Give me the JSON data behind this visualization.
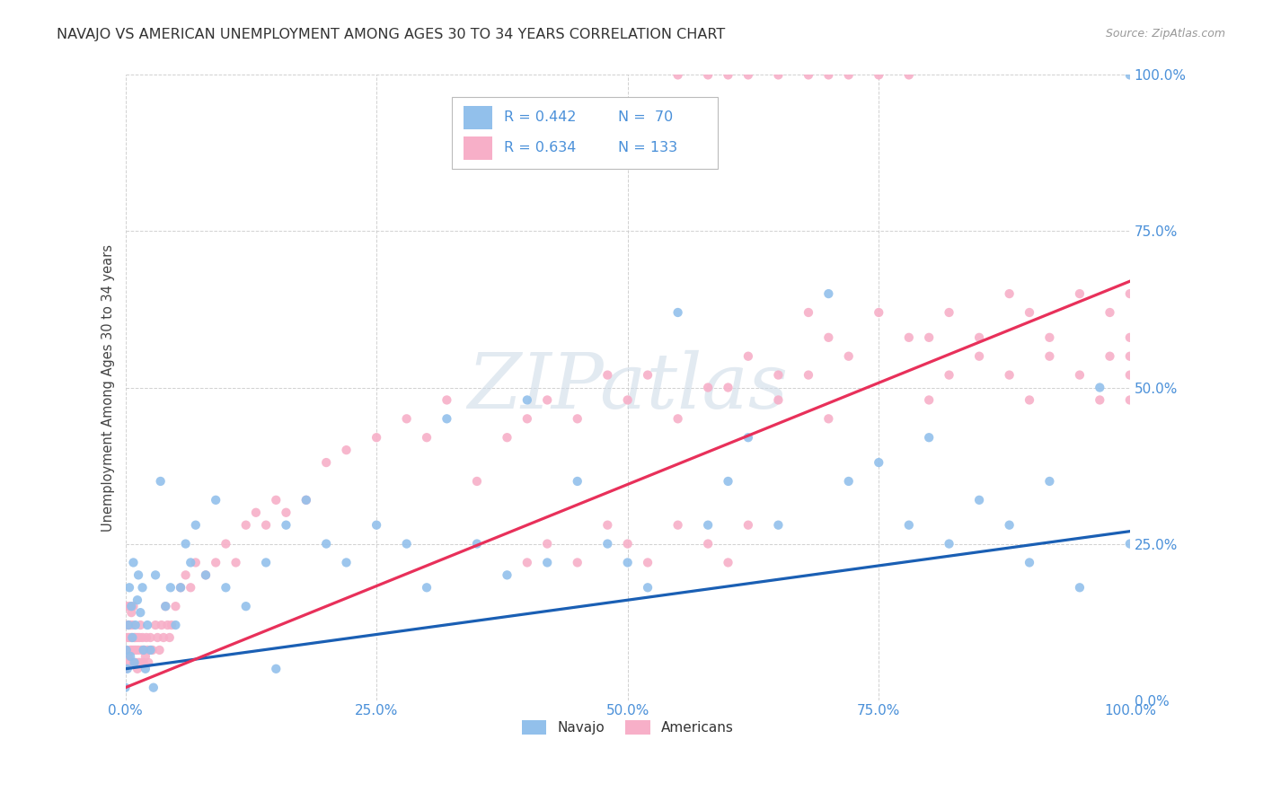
{
  "title": "NAVAJO VS AMERICAN UNEMPLOYMENT AMONG AGES 30 TO 34 YEARS CORRELATION CHART",
  "source": "Source: ZipAtlas.com",
  "ylabel": "Unemployment Among Ages 30 to 34 years",
  "navajo_R": 0.442,
  "navajo_N": 70,
  "american_R": 0.634,
  "american_N": 133,
  "navajo_color": "#92c0eb",
  "american_color": "#f7afc8",
  "navajo_line_color": "#1a5fb4",
  "american_line_color": "#e8305a",
  "watermark_text": "ZIPatlas",
  "background_color": "#ffffff",
  "grid_color": "#cccccc",
  "tick_color": "#4a90d9",
  "title_color": "#333333",
  "source_color": "#999999",
  "legend_text_color": "#4a90d9",
  "navajo_line_intercept": 0.05,
  "navajo_line_slope": 0.22,
  "american_line_intercept": 0.02,
  "american_line_slope": 0.65,
  "navajo_points_x": [
    0.0,
    0.001,
    0.002,
    0.003,
    0.004,
    0.005,
    0.006,
    0.007,
    0.008,
    0.009,
    0.01,
    0.012,
    0.013,
    0.015,
    0.017,
    0.018,
    0.02,
    0.022,
    0.025,
    0.028,
    0.03,
    0.035,
    0.04,
    0.045,
    0.05,
    0.055,
    0.06,
    0.065,
    0.07,
    0.08,
    0.09,
    0.1,
    0.12,
    0.14,
    0.15,
    0.16,
    0.18,
    0.2,
    0.22,
    0.25,
    0.28,
    0.3,
    0.32,
    0.35,
    0.38,
    0.4,
    0.42,
    0.45,
    0.48,
    0.5,
    0.52,
    0.55,
    0.58,
    0.6,
    0.62,
    0.65,
    0.7,
    0.72,
    0.75,
    0.78,
    0.8,
    0.82,
    0.85,
    0.88,
    0.9,
    0.92,
    0.95,
    0.97,
    1.0,
    1.0
  ],
  "navajo_points_y": [
    0.02,
    0.08,
    0.05,
    0.12,
    0.18,
    0.07,
    0.15,
    0.1,
    0.22,
    0.06,
    0.12,
    0.16,
    0.2,
    0.14,
    0.18,
    0.08,
    0.05,
    0.12,
    0.08,
    0.02,
    0.2,
    0.35,
    0.15,
    0.18,
    0.12,
    0.18,
    0.25,
    0.22,
    0.28,
    0.2,
    0.32,
    0.18,
    0.15,
    0.22,
    0.05,
    0.28,
    0.32,
    0.25,
    0.22,
    0.28,
    0.25,
    0.18,
    0.45,
    0.25,
    0.2,
    0.48,
    0.22,
    0.35,
    0.25,
    0.22,
    0.18,
    0.62,
    0.28,
    0.35,
    0.42,
    0.28,
    0.65,
    0.35,
    0.38,
    0.28,
    0.42,
    0.25,
    0.32,
    0.28,
    0.22,
    0.35,
    0.18,
    0.5,
    0.25,
    1.0
  ],
  "american_points_x": [
    0.0,
    0.0,
    0.001,
    0.001,
    0.002,
    0.002,
    0.003,
    0.003,
    0.004,
    0.004,
    0.005,
    0.005,
    0.006,
    0.006,
    0.007,
    0.007,
    0.008,
    0.008,
    0.009,
    0.009,
    0.01,
    0.01,
    0.011,
    0.012,
    0.012,
    0.013,
    0.013,
    0.014,
    0.015,
    0.015,
    0.016,
    0.017,
    0.018,
    0.019,
    0.02,
    0.021,
    0.022,
    0.023,
    0.025,
    0.027,
    0.03,
    0.032,
    0.034,
    0.036,
    0.038,
    0.04,
    0.042,
    0.044,
    0.046,
    0.05,
    0.055,
    0.06,
    0.065,
    0.07,
    0.08,
    0.09,
    0.1,
    0.11,
    0.12,
    0.13,
    0.14,
    0.15,
    0.16,
    0.18,
    0.2,
    0.22,
    0.25,
    0.28,
    0.3,
    0.32,
    0.35,
    0.38,
    0.4,
    0.42,
    0.45,
    0.48,
    0.5,
    0.52,
    0.55,
    0.58,
    0.6,
    0.62,
    0.65,
    0.68,
    0.7,
    0.72,
    0.75,
    0.78,
    0.8,
    0.82,
    0.85,
    0.88,
    0.9,
    0.92,
    0.95,
    0.97,
    0.98,
    1.0,
    1.0,
    1.0,
    0.55,
    0.58,
    0.6,
    0.62,
    0.65,
    0.68,
    0.7,
    0.72,
    0.75,
    0.78,
    0.8,
    0.82,
    0.85,
    0.88,
    0.9,
    0.92,
    0.95,
    0.98,
    1.0,
    1.0,
    0.4,
    0.42,
    0.45,
    0.48,
    0.5,
    0.52,
    0.55,
    0.58,
    0.6,
    0.62,
    0.65,
    0.68,
    0.7
  ],
  "american_points_y": [
    0.05,
    0.12,
    0.08,
    0.15,
    0.06,
    0.1,
    0.12,
    0.07,
    0.15,
    0.1,
    0.12,
    0.08,
    0.14,
    0.1,
    0.08,
    0.12,
    0.06,
    0.15,
    0.1,
    0.08,
    0.06,
    0.1,
    0.08,
    0.05,
    0.1,
    0.06,
    0.08,
    0.1,
    0.06,
    0.12,
    0.08,
    0.1,
    0.06,
    0.08,
    0.07,
    0.1,
    0.08,
    0.06,
    0.1,
    0.08,
    0.12,
    0.1,
    0.08,
    0.12,
    0.1,
    0.15,
    0.12,
    0.1,
    0.12,
    0.15,
    0.18,
    0.2,
    0.18,
    0.22,
    0.2,
    0.22,
    0.25,
    0.22,
    0.28,
    0.3,
    0.28,
    0.32,
    0.3,
    0.32,
    0.38,
    0.4,
    0.42,
    0.45,
    0.42,
    0.48,
    0.35,
    0.42,
    0.45,
    0.48,
    0.45,
    0.52,
    0.48,
    0.52,
    0.45,
    0.5,
    0.5,
    0.55,
    0.52,
    0.62,
    0.58,
    0.55,
    0.62,
    0.58,
    0.48,
    0.52,
    0.55,
    0.52,
    0.48,
    0.55,
    0.52,
    0.48,
    0.55,
    0.52,
    0.48,
    0.55,
    1.0,
    1.0,
    1.0,
    1.0,
    1.0,
    1.0,
    1.0,
    1.0,
    1.0,
    1.0,
    0.58,
    0.62,
    0.58,
    0.65,
    0.62,
    0.58,
    0.65,
    0.62,
    0.58,
    0.65,
    0.22,
    0.25,
    0.22,
    0.28,
    0.25,
    0.22,
    0.28,
    0.25,
    0.22,
    0.28,
    0.48,
    0.52,
    0.45
  ]
}
